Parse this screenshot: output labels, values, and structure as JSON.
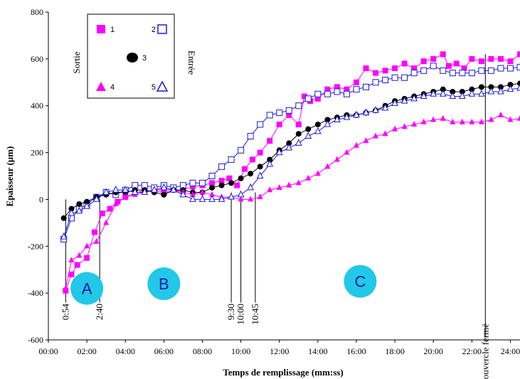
{
  "chart_data": {
    "type": "line",
    "title": "",
    "xlabel": "Temps de remplissage (mm:ss)",
    "ylabel": "Epaisseur (µm)",
    "xlim": [
      0,
      24.5
    ],
    "ylim": [
      -600,
      800
    ],
    "x_ticks": [
      0,
      2,
      4,
      6,
      8,
      10,
      12,
      14,
      16,
      18,
      20,
      22,
      24
    ],
    "x_tick_labels": [
      "00:00",
      "02:00",
      "04:00",
      "06:00",
      "08:00",
      "10:00",
      "12:00",
      "14:00",
      "16:00",
      "18:00",
      "20:00",
      "22:00",
      "24:00"
    ],
    "y_ticks": [
      -600,
      -400,
      -200,
      0,
      200,
      400,
      600,
      800
    ],
    "y_tick_labels": [
      "-600",
      "-400",
      "-200",
      "0",
      "200",
      "400",
      "600",
      "800"
    ],
    "grid": false,
    "legend_placement": "top-left",
    "legend": {
      "left_label": "Sortie",
      "right_label": "Entrée",
      "entries": [
        "1",
        "2",
        "3",
        "4",
        "5"
      ]
    },
    "series": [
      {
        "name": "1",
        "color": "#ff00ff",
        "marker": "square-filled",
        "x": [
          0.9,
          1.2,
          1.5,
          2.0,
          2.4,
          2.8,
          3.2,
          3.6,
          4.0,
          5.0,
          6.0,
          7.0,
          7.5,
          8.0,
          8.5,
          9.0,
          9.4,
          9.8,
          10.2,
          10.6,
          11.0,
          11.5,
          12.0,
          12.5,
          13.0,
          13.3,
          13.6,
          14.0,
          14.5,
          15.0,
          15.5,
          16.0,
          16.5,
          17.0,
          17.5,
          18.0,
          18.5,
          19.0,
          19.5,
          20.0,
          20.5,
          20.8,
          21.2,
          21.6,
          22.0,
          22.5,
          23.0,
          23.5,
          24.0,
          24.5
        ],
        "y": [
          -390,
          -320,
          -280,
          -250,
          -140,
          -60,
          -40,
          -10,
          10,
          40,
          30,
          40,
          55,
          60,
          70,
          80,
          90,
          60,
          130,
          170,
          200,
          250,
          320,
          360,
          320,
          440,
          420,
          430,
          470,
          480,
          470,
          500,
          560,
          540,
          550,
          560,
          580,
          560,
          590,
          600,
          620,
          570,
          580,
          560,
          600,
          590,
          600,
          600,
          590,
          620
        ]
      },
      {
        "name": "2",
        "color": "#1a1adc",
        "marker": "square-open",
        "x": [
          0.8,
          1.2,
          1.6,
          2.0,
          2.5,
          3.0,
          3.5,
          4.0,
          4.5,
          5.0,
          5.5,
          6.0,
          6.5,
          7.0,
          7.5,
          8.0,
          8.5,
          9.0,
          9.5,
          10.0,
          10.5,
          11.0,
          11.5,
          12.0,
          12.5,
          13.0,
          13.5,
          14.0,
          14.5,
          15.0,
          15.5,
          16.0,
          16.5,
          17.0,
          17.5,
          18.0,
          18.5,
          19.0,
          19.5,
          20.0,
          20.5,
          21.0,
          21.5,
          22.0,
          22.5,
          23.0,
          23.5,
          24.0,
          24.5
        ],
        "y": [
          -170,
          -80,
          -40,
          -20,
          10,
          30,
          20,
          40,
          60,
          60,
          50,
          60,
          50,
          60,
          70,
          70,
          100,
          140,
          170,
          210,
          270,
          320,
          360,
          370,
          380,
          400,
          430,
          450,
          450,
          460,
          450,
          470,
          480,
          500,
          510,
          520,
          520,
          540,
          550,
          570,
          550,
          540,
          540,
          540,
          550,
          550,
          560,
          560,
          565
        ]
      },
      {
        "name": "3",
        "color": "#000000",
        "marker": "circle-filled",
        "x": [
          0.8,
          1.2,
          1.6,
          2.0,
          2.5,
          3.0,
          3.5,
          4.0,
          4.5,
          5.0,
          5.5,
          6.0,
          6.5,
          7.0,
          7.5,
          8.0,
          8.5,
          9.0,
          9.5,
          10.0,
          10.5,
          11.0,
          11.5,
          12.0,
          12.5,
          13.0,
          13.5,
          14.0,
          14.5,
          15.0,
          15.5,
          16.0,
          16.5,
          17.0,
          17.5,
          18.0,
          18.5,
          19.0,
          19.5,
          20.0,
          20.5,
          21.0,
          21.5,
          22.0,
          22.5,
          23.0,
          23.5,
          24.0,
          24.5
        ],
        "y": [
          -80,
          -40,
          -20,
          -10,
          10,
          20,
          30,
          30,
          40,
          40,
          30,
          20,
          40,
          40,
          30,
          30,
          50,
          60,
          70,
          90,
          110,
          140,
          170,
          210,
          240,
          280,
          300,
          320,
          340,
          350,
          360,
          360,
          370,
          380,
          400,
          420,
          430,
          440,
          450,
          460,
          470,
          460,
          460,
          470,
          480,
          480,
          480,
          490,
          495
        ]
      },
      {
        "name": "4",
        "color": "#ff00ff",
        "marker": "triangle-filled",
        "x": [
          0.9,
          1.2,
          1.6,
          2.0,
          2.5,
          3.0,
          3.5,
          4.0,
          4.5,
          5.0,
          5.5,
          6.0,
          6.5,
          7.0,
          7.5,
          8.0,
          8.5,
          9.0,
          9.5,
          10.0,
          10.5,
          11.0,
          11.5,
          12.0,
          12.5,
          13.0,
          13.5,
          14.0,
          14.5,
          15.0,
          15.5,
          16.0,
          16.5,
          17.0,
          17.5,
          18.0,
          18.5,
          19.0,
          19.5,
          20.0,
          20.5,
          21.0,
          21.5,
          22.0,
          22.5,
          23.0,
          23.5,
          24.0,
          24.5
        ],
        "y": [
          -380,
          -260,
          -240,
          -200,
          -180,
          -100,
          -20,
          10,
          20,
          30,
          40,
          40,
          40,
          30,
          20,
          30,
          20,
          10,
          10,
          0,
          0,
          10,
          40,
          50,
          60,
          70,
          90,
          110,
          140,
          170,
          200,
          230,
          250,
          270,
          280,
          300,
          310,
          320,
          330,
          340,
          345,
          330,
          330,
          330,
          330,
          340,
          360,
          340,
          345
        ]
      },
      {
        "name": "5",
        "color": "#1a1adc",
        "marker": "triangle-open",
        "x": [
          0.8,
          1.2,
          1.6,
          2.0,
          2.5,
          3.0,
          3.5,
          4.0,
          4.5,
          5.0,
          5.5,
          6.0,
          6.5,
          7.0,
          7.5,
          8.0,
          8.5,
          9.0,
          9.5,
          10.0,
          10.5,
          11.0,
          11.5,
          12.0,
          12.5,
          13.0,
          13.5,
          14.0,
          14.5,
          15.0,
          15.5,
          16.0,
          16.5,
          17.0,
          17.5,
          18.0,
          18.5,
          19.0,
          19.5,
          20.0,
          20.5,
          21.0,
          21.5,
          22.0,
          22.5,
          23.0,
          23.5,
          24.0,
          24.5
        ],
        "y": [
          -160,
          -60,
          -50,
          -30,
          0,
          30,
          40,
          40,
          30,
          30,
          40,
          50,
          40,
          20,
          0,
          0,
          0,
          0,
          10,
          20,
          50,
          100,
          150,
          200,
          220,
          240,
          270,
          290,
          320,
          340,
          350,
          360,
          370,
          380,
          390,
          410,
          420,
          430,
          440,
          450,
          450,
          440,
          440,
          450,
          450,
          460,
          460,
          470,
          475
        ]
      }
    ],
    "vertical_markers": [
      {
        "x": 0.9,
        "label": "0:54"
      },
      {
        "x": 2.667,
        "label": "2:40"
      },
      {
        "x": 9.5,
        "label": "9:30"
      },
      {
        "x": 10.0,
        "label": "10:00"
      },
      {
        "x": 10.75,
        "label": "10:45"
      },
      {
        "x": 22.7,
        "label": "Couvercle fermé"
      }
    ],
    "phases": [
      {
        "label": "A",
        "x": 2.0,
        "y": -380
      },
      {
        "label": "B",
        "x": 6.0,
        "y": -360
      },
      {
        "label": "C",
        "x": 16.2,
        "y": -350
      }
    ],
    "colors": {
      "phase_circle": "#22c8e8",
      "pink": "#ff00ff",
      "blue": "#1a1adc",
      "black": "#000000"
    }
  }
}
